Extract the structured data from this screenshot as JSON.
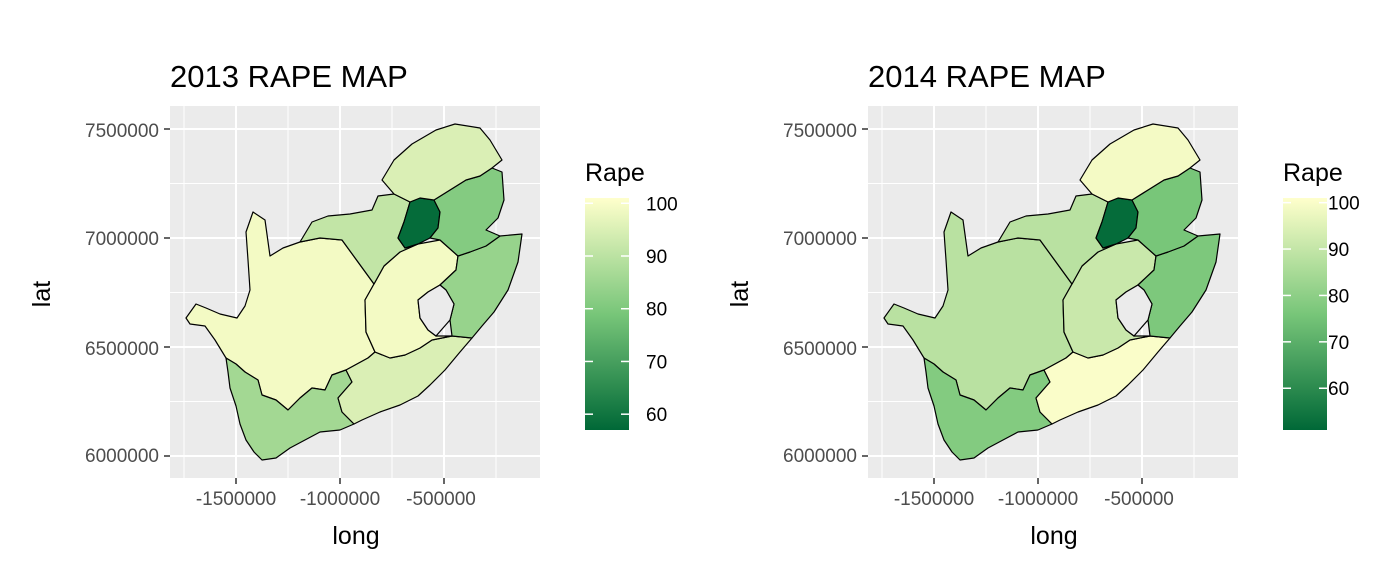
{
  "panels": [
    {
      "title": "2013 RAPE MAP",
      "xlabel": "long",
      "ylabel": "lat",
      "x_ticks": [
        "-1500000",
        "-1000000",
        "-500000"
      ],
      "y_ticks": [
        "7500000",
        "7000000",
        "6500000",
        "6000000"
      ],
      "legend_title": "Rape",
      "legend_ticks": [
        "100",
        "90",
        "80",
        "70",
        "60"
      ],
      "legend_range": [
        57,
        101
      ]
    },
    {
      "title": "2014 RAPE MAP",
      "xlabel": "long",
      "ylabel": "lat",
      "x_ticks": [
        "-1500000",
        "-1000000",
        "-500000"
      ],
      "y_ticks": [
        "7500000",
        "7000000",
        "6500000",
        "6000000"
      ],
      "legend_title": "Rape",
      "legend_ticks": [
        "100",
        "90",
        "80",
        "70",
        "60"
      ],
      "legend_range": [
        51,
        101
      ]
    }
  ],
  "chart_data": [
    {
      "type": "choropleth",
      "title": "2013 RAPE MAP",
      "xlabel": "long",
      "ylabel": "lat",
      "xlim": [
        -1800000,
        -50000
      ],
      "ylim": [
        5900000,
        7600000
      ],
      "legend_title": "Rape",
      "color_scale": {
        "low": "#006837",
        "mid": "#78c679",
        "high": "#ffffcc",
        "range": [
          57,
          101
        ]
      },
      "regions": [
        {
          "id": "northern-cape",
          "value": 99
        },
        {
          "id": "western-cape",
          "value": 86
        },
        {
          "id": "eastern-cape",
          "value": 95
        },
        {
          "id": "free-state",
          "value": 99
        },
        {
          "id": "kwazulu-natal",
          "value": 84
        },
        {
          "id": "north-west",
          "value": 91
        },
        {
          "id": "gauteng",
          "value": 58
        },
        {
          "id": "mpumalanga",
          "value": 81
        },
        {
          "id": "limpopo",
          "value": 95
        }
      ]
    },
    {
      "type": "choropleth",
      "title": "2014 RAPE MAP",
      "xlabel": "long",
      "ylabel": "lat",
      "xlim": [
        -1800000,
        -50000
      ],
      "ylim": [
        5900000,
        7600000
      ],
      "legend_title": "Rape",
      "color_scale": {
        "low": "#006837",
        "mid": "#78c679",
        "high": "#ffffcc",
        "range": [
          51,
          101
        ]
      },
      "regions": [
        {
          "id": "northern-cape",
          "value": 88
        },
        {
          "id": "western-cape",
          "value": 78
        },
        {
          "id": "eastern-cape",
          "value": 100
        },
        {
          "id": "free-state",
          "value": 91
        },
        {
          "id": "kwazulu-natal",
          "value": 77
        },
        {
          "id": "north-west",
          "value": 88
        },
        {
          "id": "gauteng",
          "value": 52
        },
        {
          "id": "mpumalanga",
          "value": 76
        },
        {
          "id": "limpopo",
          "value": 99
        }
      ]
    }
  ]
}
